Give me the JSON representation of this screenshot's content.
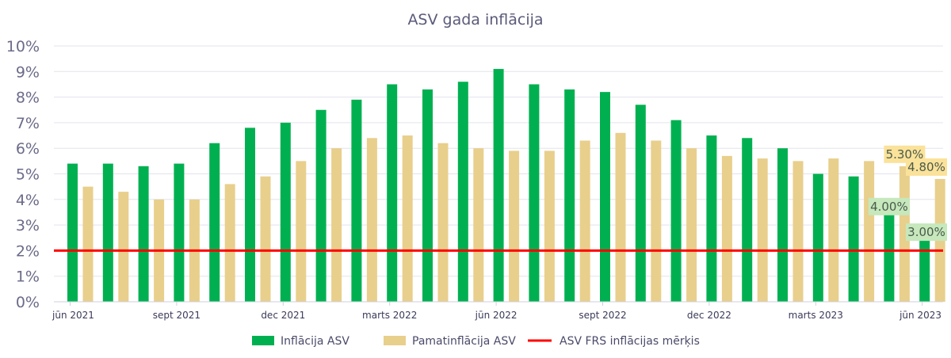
{
  "chart_data": {
    "type": "bar",
    "title": "ASV gada inflācija",
    "xlabel": "",
    "ylabel": "",
    "ylim": [
      0,
      10
    ],
    "y_tick_labels": [
      "0%",
      "1%",
      "2%",
      "3%",
      "4%",
      "5%",
      "6%",
      "7%",
      "8%",
      "9%",
      "10%"
    ],
    "x_tick_labels": [
      {
        "index": 0,
        "label": "jūn 2021"
      },
      {
        "index": 3,
        "label": "sept 2021"
      },
      {
        "index": 6,
        "label": "dec 2021"
      },
      {
        "index": 9,
        "label": "marts 2022"
      },
      {
        "index": 12,
        "label": "jūn 2022"
      },
      {
        "index": 15,
        "label": "sept 2022"
      },
      {
        "index": 18,
        "label": "dec 2022"
      },
      {
        "index": 21,
        "label": "marts 2023"
      },
      {
        "index": 24,
        "label": "jūn 2023"
      }
    ],
    "grid": true,
    "legend_position": "bottom",
    "series": [
      {
        "name": "Inflācija ASV",
        "color": "#00b050",
        "values": [
          5.4,
          5.4,
          5.3,
          5.4,
          6.2,
          6.8,
          7.0,
          7.5,
          7.9,
          8.5,
          8.3,
          8.6,
          9.1,
          8.5,
          8.3,
          8.2,
          7.7,
          7.1,
          6.5,
          6.4,
          6.0,
          5.0,
          4.9,
          4.0,
          3.0
        ]
      },
      {
        "name": "Pamatinflācija ASV",
        "color": "#e8cf8c",
        "values": [
          4.5,
          4.3,
          4.0,
          4.0,
          4.6,
          4.9,
          5.5,
          6.0,
          6.4,
          6.5,
          6.2,
          6.0,
          5.9,
          5.9,
          6.3,
          6.6,
          6.3,
          6.0,
          5.7,
          5.6,
          5.5,
          5.6,
          5.5,
          5.3,
          4.8
        ]
      }
    ],
    "target_line": {
      "name": "ASV FRS inflācijas mērķis",
      "value": 2.0,
      "color": "#ff0000"
    },
    "annotations": [
      {
        "text": "5.30%",
        "series": 1,
        "index": 23,
        "bg": "#fbe29a"
      },
      {
        "text": "4.80%",
        "series": 1,
        "index": 24,
        "bg": "#fbe29a"
      },
      {
        "text": "4.00%",
        "series": 0,
        "index": 23,
        "bg": "#c6e8bc"
      },
      {
        "text": "3.00%",
        "series": 0,
        "index": 24,
        "bg": "#c6e8bc"
      }
    ]
  }
}
